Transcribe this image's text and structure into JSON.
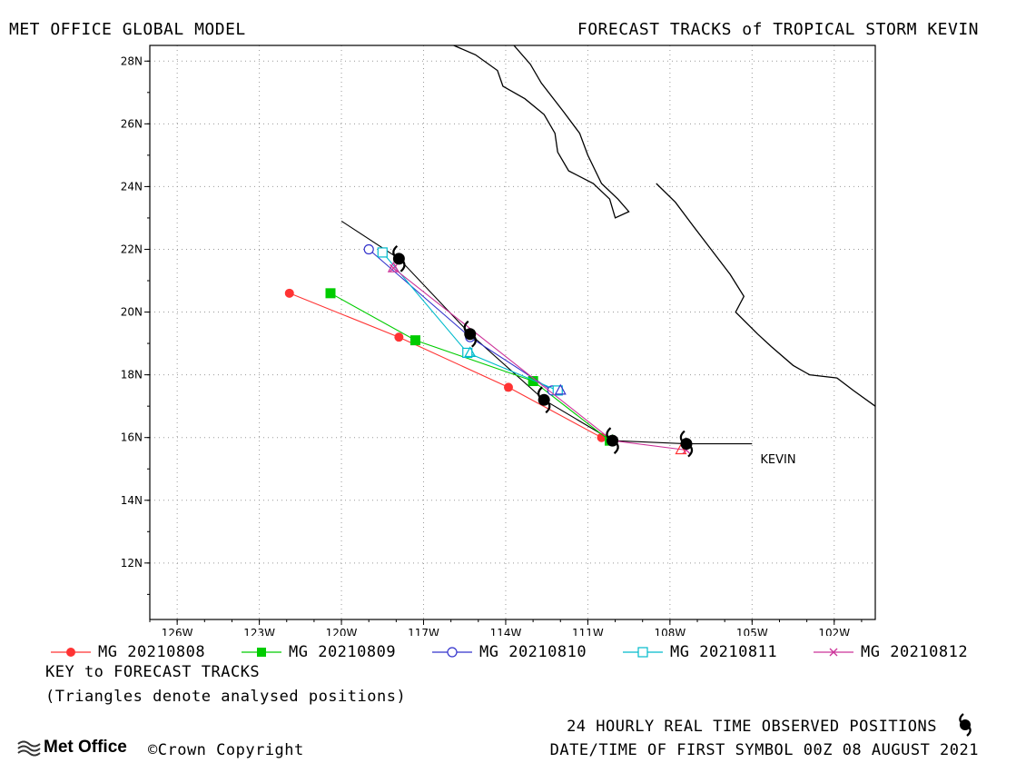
{
  "header": {
    "left_title": "MET OFFICE GLOBAL MODEL",
    "right_title": "FORECAST TRACKS of TROPICAL STORM KEVIN"
  },
  "map": {
    "projection": "lat-lon",
    "lon_range": [
      -127,
      -100.5
    ],
    "lat_range": [
      10.2,
      28.5
    ],
    "grid": true,
    "lon_ticks": [
      -126,
      -123,
      -120,
      -117,
      -114,
      -111,
      -108,
      -105,
      -102
    ],
    "lon_tick_labels": [
      "126W",
      "123W",
      "120W",
      "117W",
      "114W",
      "111W",
      "108W",
      "105W",
      "102W"
    ],
    "lat_ticks": [
      12,
      14,
      16,
      18,
      20,
      22,
      24,
      26,
      28
    ],
    "lat_tick_labels": [
      "12N",
      "14N",
      "16N",
      "18N",
      "20N",
      "22N",
      "24N",
      "26N",
      "28N"
    ],
    "storm_label": "KEVIN",
    "storm_label_position": [
      -104.7,
      15.3
    ],
    "coastlines": [
      [
        [
          -115.9,
          28.5
        ],
        [
          -115.1,
          28.2
        ],
        [
          -114.3,
          27.7
        ],
        [
          -114.1,
          27.2
        ],
        [
          -113.3,
          26.8
        ],
        [
          -112.6,
          26.3
        ],
        [
          -112.2,
          25.7
        ],
        [
          -112.1,
          25.1
        ],
        [
          -111.7,
          24.5
        ],
        [
          -110.8,
          24.1
        ],
        [
          -110.2,
          23.6
        ],
        [
          -110.0,
          23.0
        ],
        [
          -109.5,
          23.2
        ],
        [
          -109.9,
          23.6
        ],
        [
          -110.5,
          24.1
        ],
        [
          -111.0,
          25.0
        ],
        [
          -111.3,
          25.7
        ],
        [
          -111.9,
          26.4
        ],
        [
          -112.7,
          27.3
        ],
        [
          -113.1,
          27.9
        ],
        [
          -113.7,
          28.5
        ]
      ],
      [
        [
          -108.5,
          24.1
        ],
        [
          -107.8,
          23.5
        ],
        [
          -107.2,
          22.8
        ],
        [
          -106.5,
          22.0
        ],
        [
          -105.8,
          21.2
        ],
        [
          -105.3,
          20.5
        ],
        [
          -105.6,
          20.0
        ],
        [
          -104.8,
          19.3
        ],
        [
          -104.3,
          18.9
        ],
        [
          -103.5,
          18.3
        ],
        [
          -102.9,
          18.0
        ],
        [
          -101.9,
          17.9
        ],
        [
          -101.3,
          17.5
        ],
        [
          -100.5,
          17.0
        ]
      ]
    ],
    "legend_title": "KEY to FORECAST TRACKS",
    "legend_note": "(Triangles denote analysed positions)",
    "footer_observed": "24 HOURLY REAL TIME OBSERVED POSITIONS",
    "footer_date": "DATE/TIME OF FIRST SYMBOL 00Z 08 AUGUST 2021",
    "copyright": "©Crown Copyright",
    "logo_text": "Met Office"
  },
  "chart_data": {
    "type": "scatter",
    "title": "FORECAST TRACKS of TROPICAL STORM KEVIN",
    "xlabel": "",
    "ylabel": "",
    "xlim": [
      -127,
      -100.5
    ],
    "ylim": [
      10.2,
      28.5
    ],
    "observed_track": {
      "name": "",
      "color": "#000000",
      "points": [
        [
          -105.0,
          15.8
        ],
        [
          -107.4,
          15.8
        ],
        [
          -110.1,
          15.9
        ],
        [
          -112.6,
          17.2
        ],
        [
          -115.3,
          19.3
        ],
        [
          -117.9,
          21.7
        ],
        [
          -120.0,
          22.9
        ]
      ],
      "symbol_points": [
        [
          -107.4,
          15.8
        ],
        [
          -110.1,
          15.9
        ],
        [
          -112.6,
          17.2
        ],
        [
          -115.3,
          19.3
        ],
        [
          -117.9,
          21.7
        ]
      ]
    },
    "series": [
      {
        "name": "MG 20210808",
        "color": "#ff3333",
        "marker": "circle-filled",
        "points": [
          [
            -110.5,
            16.0
          ],
          [
            -113.9,
            17.6
          ],
          [
            -117.9,
            19.2
          ],
          [
            -121.9,
            20.6
          ]
        ]
      },
      {
        "name": "MG 20210809",
        "color": "#00cc00",
        "marker": "square-filled",
        "points": [
          [
            -110.2,
            15.9
          ],
          [
            -113.0,
            17.8
          ],
          [
            -117.3,
            19.1
          ],
          [
            -120.4,
            20.6
          ]
        ]
      },
      {
        "name": "MG 20210810",
        "color": "#3333cc",
        "marker": "circle-open",
        "points": [
          [
            -112.3,
            17.5
          ],
          [
            -115.3,
            19.2
          ],
          [
            -119.0,
            22.0
          ]
        ]
      },
      {
        "name": "MG 20210811",
        "color": "#00bbcc",
        "marker": "square-open",
        "points": [
          [
            -112.1,
            17.5
          ],
          [
            -115.4,
            18.7
          ],
          [
            -118.5,
            21.9
          ]
        ]
      },
      {
        "name": "MG 20210812",
        "color": "#cc3399",
        "marker": "x",
        "points": [
          [
            -107.4,
            15.6
          ],
          [
            -110.1,
            15.9
          ],
          [
            -118.1,
            21.4
          ]
        ]
      }
    ],
    "analysed_positions": [
      {
        "series": "MG 20210808",
        "color": "#ff3333",
        "point": [
          -107.6,
          15.6
        ]
      },
      {
        "series": "MG 20210809",
        "color": "#00cc00",
        "point": [
          -110.1,
          15.9
        ]
      },
      {
        "series": "MG 20210810",
        "color": "#3333cc",
        "point": [
          -112.0,
          17.5
        ]
      },
      {
        "series": "MG 20210811",
        "color": "#00bbcc",
        "point": [
          -115.3,
          18.7
        ]
      },
      {
        "series": "MG 20210812",
        "color": "#cc3399",
        "point": [
          -118.1,
          21.4
        ]
      }
    ]
  }
}
